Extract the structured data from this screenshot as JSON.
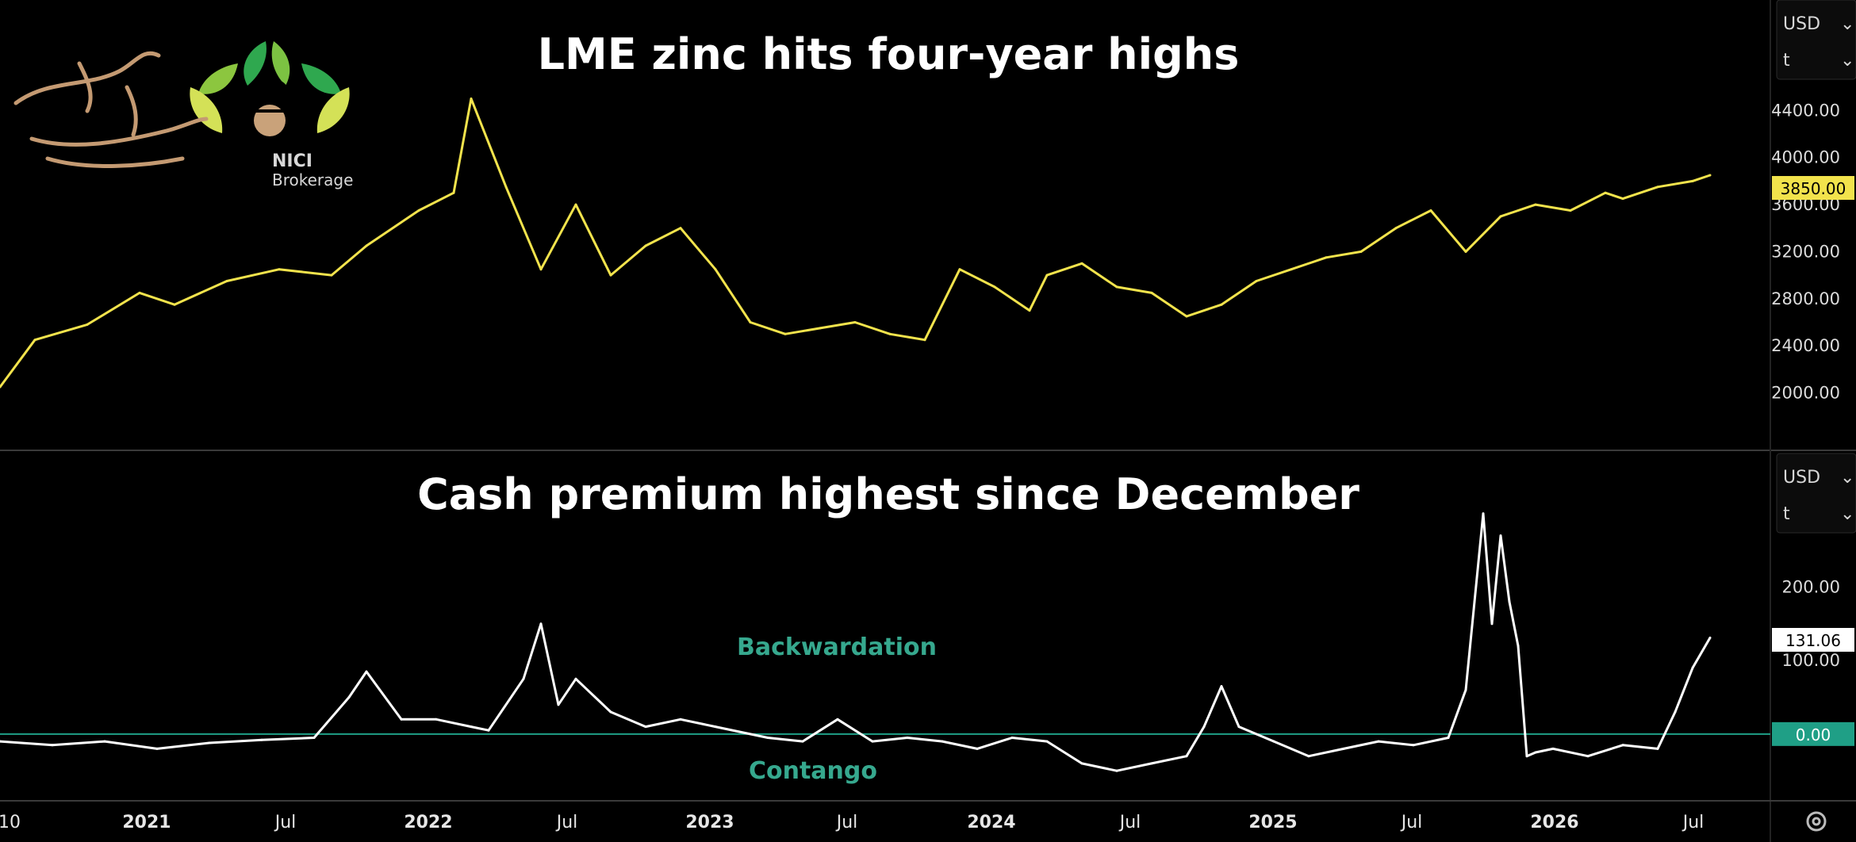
{
  "colors": {
    "background": "#000000",
    "price_line": "#f2e34c",
    "premium_line": "#ffffff",
    "zero_line": "#1f9f86",
    "annotation": "#36a88e",
    "separator": "#3a3a3a",
    "price_badge_bg": "#f2e34c",
    "premium_badge_bg": "#ffffff",
    "zero_badge_bg": "#1f9f86"
  },
  "logo": {
    "brand": "NICI",
    "sub": "Brokerage",
    "script_text": "کارگزاری ملی ایران"
  },
  "x_axis_labels": [
    "10",
    "2021",
    "Jul",
    "2022",
    "Jul",
    "2023",
    "Jul",
    "2024",
    "Jul",
    "2025",
    "Jul",
    "2026",
    "Jul"
  ],
  "settings_icon": "gear-icon",
  "chart_data": [
    {
      "type": "line",
      "title": "LME zinc hits four-year highs",
      "currency_selector": "USD",
      "unit_selector": "t",
      "y_ticks": [
        2000,
        2400,
        2800,
        3200,
        3600,
        4000,
        4400
      ],
      "y_tick_labels": [
        "2000.00",
        "2400.00",
        "2800.00",
        "3200.00",
        "3600.00",
        "4000.00",
        "4400.00"
      ],
      "ylim": [
        1700,
        4800
      ],
      "last_value_label": "3850.00",
      "series": [
        {
          "color": "#f2e34c",
          "x": [
            0,
            0.02,
            0.05,
            0.08,
            0.1,
            0.13,
            0.16,
            0.19,
            0.21,
            0.24,
            0.26,
            0.27,
            0.29,
            0.31,
            0.33,
            0.35,
            0.37,
            0.39,
            0.41,
            0.43,
            0.45,
            0.47,
            0.49,
            0.51,
            0.53,
            0.55,
            0.57,
            0.59,
            0.6,
            0.62,
            0.64,
            0.66,
            0.68,
            0.7,
            0.72,
            0.74,
            0.76,
            0.78,
            0.8,
            0.82,
            0.84,
            0.86,
            0.88,
            0.9,
            0.92,
            0.93,
            0.95,
            0.97,
            0.98
          ],
          "values": [
            2050,
            2450,
            2580,
            2850,
            2750,
            2950,
            3050,
            3000,
            3250,
            3550,
            3700,
            4500,
            3750,
            3050,
            3600,
            3000,
            3250,
            3400,
            3050,
            2600,
            2500,
            2550,
            2600,
            2500,
            2450,
            3050,
            2900,
            2700,
            3000,
            3100,
            2900,
            2850,
            2650,
            2750,
            2950,
            3050,
            3150,
            3200,
            3400,
            3550,
            3200,
            3500,
            3600,
            3550,
            3700,
            3650,
            3750,
            3800,
            3850
          ]
        }
      ]
    },
    {
      "type": "line",
      "title": "Cash premium highest since December",
      "currency_selector": "USD",
      "unit_selector": "t",
      "y_ticks": [
        0,
        100,
        200
      ],
      "y_tick_labels": [
        "0.00",
        "100.00",
        "200.00"
      ],
      "ylim": [
        -80,
        330
      ],
      "last_value_label": "131.06",
      "zero_label": "0.00",
      "annotations": [
        "Backwardation",
        "Contango"
      ],
      "series": [
        {
          "color": "#ffffff",
          "x": [
            0,
            0.03,
            0.06,
            0.09,
            0.12,
            0.15,
            0.18,
            0.2,
            0.21,
            0.23,
            0.25,
            0.27,
            0.28,
            0.3,
            0.31,
            0.32,
            0.33,
            0.35,
            0.37,
            0.39,
            0.41,
            0.44,
            0.46,
            0.48,
            0.5,
            0.52,
            0.54,
            0.56,
            0.58,
            0.6,
            0.62,
            0.64,
            0.66,
            0.68,
            0.69,
            0.7,
            0.71,
            0.73,
            0.75,
            0.77,
            0.79,
            0.81,
            0.83,
            0.84,
            0.845,
            0.85,
            0.855,
            0.86,
            0.865,
            0.87,
            0.875,
            0.88,
            0.89,
            0.91,
            0.93,
            0.95,
            0.96,
            0.97,
            0.98
          ],
          "values": [
            -10,
            -15,
            -10,
            -20,
            -12,
            -8,
            -5,
            50,
            85,
            20,
            20,
            10,
            5,
            75,
            150,
            40,
            75,
            30,
            10,
            20,
            10,
            -5,
            -10,
            20,
            -10,
            -5,
            -10,
            -20,
            -5,
            -10,
            -40,
            -50,
            -40,
            -30,
            10,
            65,
            10,
            -10,
            -30,
            -20,
            -10,
            -15,
            -5,
            60,
            180,
            300,
            150,
            270,
            180,
            120,
            -30,
            -25,
            -20,
            -30,
            -15,
            -20,
            30,
            90,
            131
          ]
        }
      ]
    }
  ]
}
